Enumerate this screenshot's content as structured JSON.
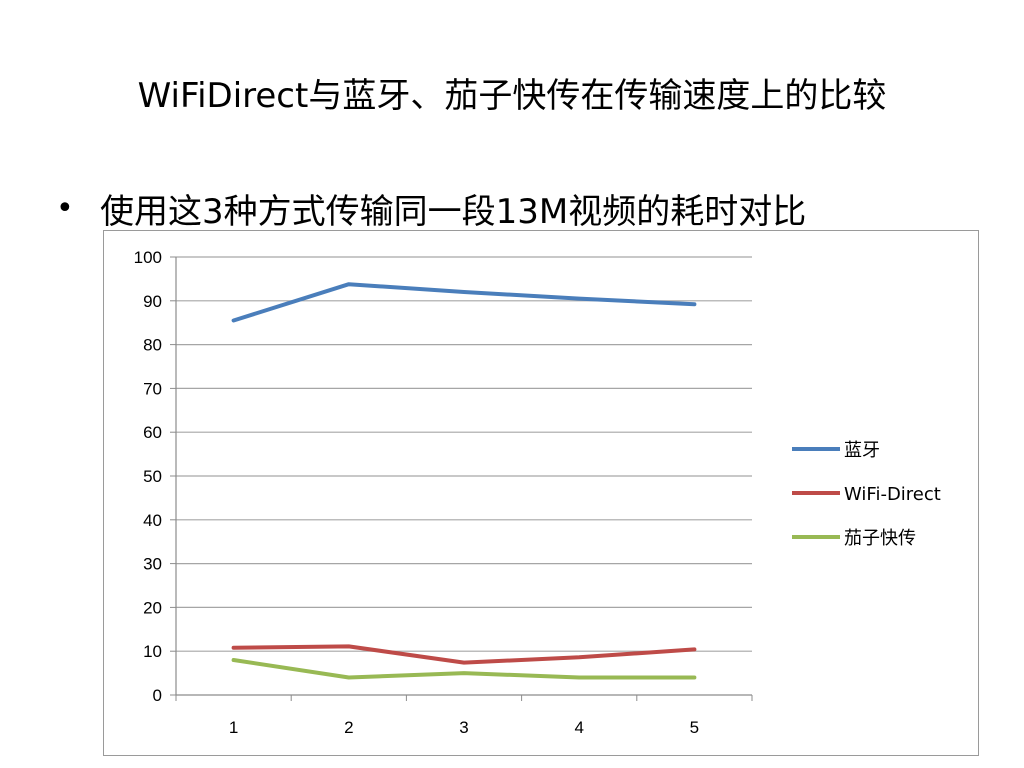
{
  "slide": {
    "title": "WiFiDirect与蓝牙、茄子快传在传输速度上的比较",
    "bullet_symbol": "•",
    "bullet_text": "使用这3种方式传输同一段13M视频的耗时对比"
  },
  "chart_data": {
    "type": "line",
    "title": "",
    "xlabel": "",
    "ylabel": "",
    "categories": [
      "1",
      "2",
      "3",
      "4",
      "5"
    ],
    "ylim": [
      0,
      100
    ],
    "yticks": [
      0,
      10,
      20,
      30,
      40,
      50,
      60,
      70,
      80,
      90,
      100
    ],
    "grid": true,
    "legend_position": "right",
    "series": [
      {
        "name": "蓝牙",
        "color": "#4a7ebb",
        "values": [
          85.5,
          93.8,
          92,
          90.5,
          89.2
        ]
      },
      {
        "name": "WiFi-Direct",
        "color": "#be4b48",
        "values": [
          10.8,
          11.1,
          7.4,
          8.6,
          10.4
        ]
      },
      {
        "name": "茄子快传",
        "color": "#98b954",
        "values": [
          8,
          4,
          5,
          4,
          4
        ]
      }
    ]
  }
}
